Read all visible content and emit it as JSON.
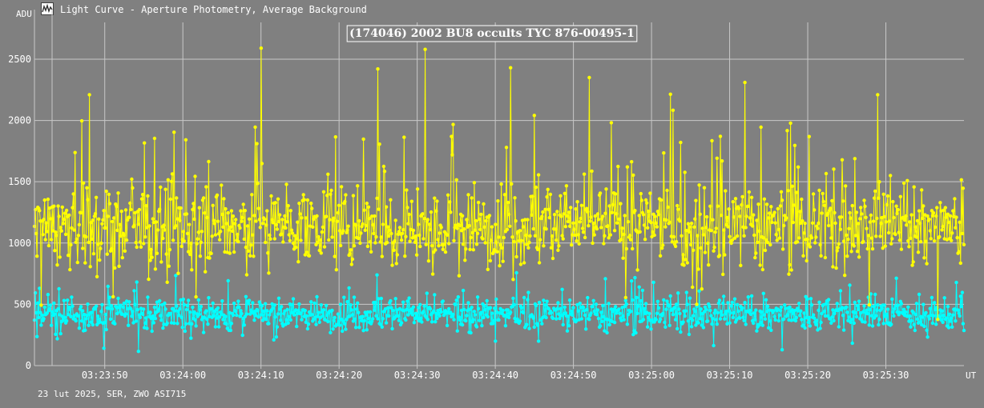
{
  "window": {
    "title": "Light Curve - Aperture Photometry, Average Background",
    "icon": "light-curve-app-icon"
  },
  "footer": {
    "text": "23 lut 2025, SER, ZWO ASI715"
  },
  "colors": {
    "background": "#808080",
    "grid": "#c8c8c8",
    "target_series": "#ffff00",
    "background_series": "#00ffff",
    "text": "#ffffff"
  },
  "chart_data": {
    "type": "line",
    "title": "(174046) 2002 BU8 occults TYC 876-00495-1",
    "xlabel": "UT",
    "ylabel": "ADU",
    "grid": true,
    "x_range": [
      "03:23:41",
      "03:25:40"
    ],
    "ylim": [
      0,
      2800
    ],
    "y_ticks": [
      0,
      500,
      1000,
      1500,
      2000,
      2500
    ],
    "x_ticks": [
      "03:23:50",
      "03:24:00",
      "03:24:10",
      "03:24:20",
      "03:24:30",
      "03:24:40",
      "03:24:50",
      "03:25:00",
      "03:25:10",
      "03:25:20",
      "03:25:30"
    ],
    "series": [
      {
        "role": "target",
        "color": "#ffff00",
        "typical_range": [
          700,
          1700
        ],
        "mean": 1150,
        "peak_values": [
          {
            "x": "03:24:10",
            "y": 2590
          },
          {
            "x": "03:24:31",
            "y": 2580
          },
          {
            "x": "03:24:25",
            "y": 2420
          },
          {
            "x": "03:24:42",
            "y": 2430
          },
          {
            "x": "03:24:52",
            "y": 2350
          },
          {
            "x": "03:25:12",
            "y": 2310
          },
          {
            "x": "03:25:29",
            "y": 2210
          },
          {
            "x": "03:23:48",
            "y": 2210
          }
        ]
      },
      {
        "role": "background",
        "color": "#00ffff",
        "typical_range": [
          250,
          650
        ],
        "mean": 420
      }
    ]
  }
}
